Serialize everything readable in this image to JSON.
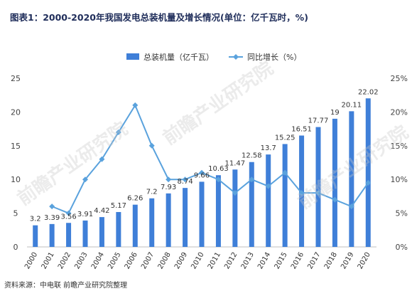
{
  "title": "图表1：2000-2020年我国发电总装机量及增长情况(单位：亿千瓦时，%)",
  "source": "资料来源：中电联 前瞻产业研究院整理",
  "watermark": "前瞻产业研究院",
  "chart_data": {
    "type": "bar",
    "categories": [
      "2000",
      "2001",
      "2002",
      "2003",
      "2004",
      "2005",
      "2006",
      "2007",
      "2008",
      "2009",
      "2010",
      "2011",
      "2012",
      "2013",
      "2014",
      "2015",
      "2016",
      "2017",
      "2018",
      "2019",
      "2020"
    ],
    "series": [
      {
        "name": "总装机量（亿千瓦）",
        "type": "bar",
        "axis": "left",
        "color": "#3f7fd8",
        "values": [
          3.2,
          3.39,
          3.56,
          3.91,
          4.42,
          5.17,
          6.26,
          7.2,
          7.93,
          8.74,
          9.66,
          10.63,
          11.47,
          12.58,
          13.7,
          15.25,
          16.51,
          17.77,
          19,
          20.11,
          22.02
        ],
        "labels": [
          "3.2",
          "3.39",
          "3.56",
          "3.91",
          "4.42",
          "5.17",
          "6.26",
          "7.2",
          "7.93",
          "8.74",
          "9.66",
          "10.63",
          "11.47",
          "12.58",
          "13.7",
          "15.25",
          "16.51",
          "17.77",
          "19",
          "20.11",
          "22.02"
        ]
      },
      {
        "name": "同比增长（%）",
        "type": "line",
        "axis": "right",
        "color": "#5aa2dd",
        "values": [
          null,
          6,
          5,
          10,
          13,
          17,
          21,
          15,
          10,
          10,
          11,
          10,
          8,
          10,
          9,
          11,
          8,
          8,
          7,
          6,
          9.5
        ]
      }
    ],
    "y_left": {
      "min": 0,
      "max": 25,
      "ticks": [
        "0",
        "5",
        "10",
        "15",
        "20",
        "25"
      ]
    },
    "y_right": {
      "min": 0,
      "max": 25,
      "ticks": [
        "0%",
        "5%",
        "10%",
        "15%",
        "20%",
        "25%"
      ]
    },
    "legend_position": "top"
  }
}
